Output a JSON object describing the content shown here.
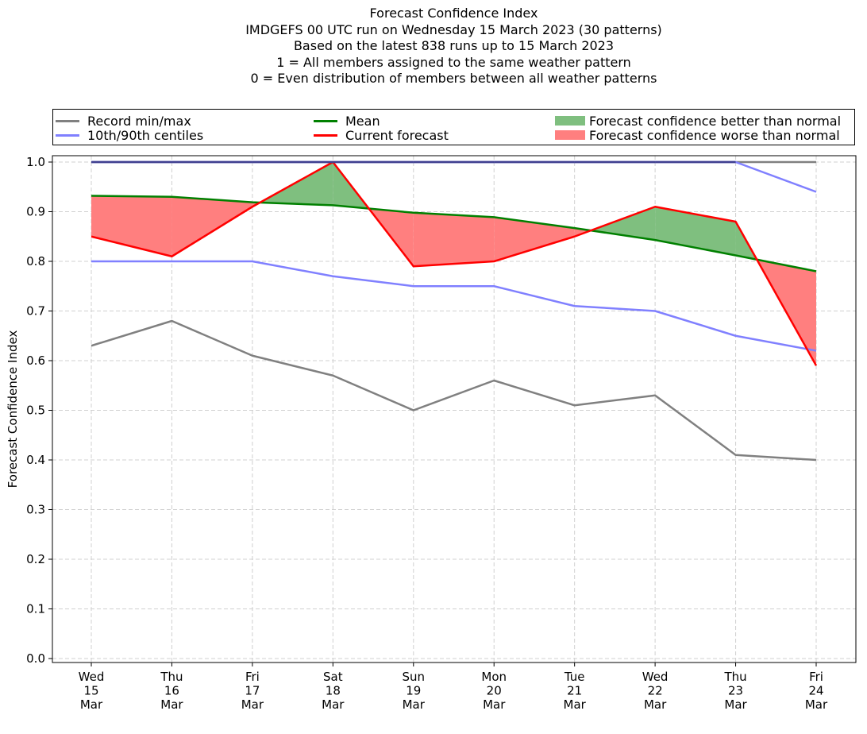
{
  "chart_data": {
    "type": "line",
    "title": "Forecast Confidence Index",
    "subtitle_lines": [
      "IMDGEFS 00 UTC run on Wednesday 15 March 2023 (30 patterns)",
      "Based on the latest 838 runs up to 15 March 2023",
      "1 = All members assigned to the same weather pattern",
      "0 = Even distribution of members between all weather patterns"
    ],
    "xlabel": "",
    "ylabel": "Forecast Confidence Index",
    "ylim": [
      0.0,
      1.0
    ],
    "yticks": [
      "0.0",
      "0.1",
      "0.2",
      "0.3",
      "0.4",
      "0.5",
      "0.6",
      "0.7",
      "0.8",
      "0.9",
      "1.0"
    ],
    "grid": true,
    "legend_placement": "top",
    "categories": [
      {
        "day": "Wed",
        "date": "15",
        "month": "Mar"
      },
      {
        "day": "Thu",
        "date": "16",
        "month": "Mar"
      },
      {
        "day": "Fri",
        "date": "17",
        "month": "Mar"
      },
      {
        "day": "Sat",
        "date": "18",
        "month": "Mar"
      },
      {
        "day": "Sun",
        "date": "19",
        "month": "Mar"
      },
      {
        "day": "Mon",
        "date": "20",
        "month": "Mar"
      },
      {
        "day": "Tue",
        "date": "21",
        "month": "Mar"
      },
      {
        "day": "Wed",
        "date": "22",
        "month": "Mar"
      },
      {
        "day": "Thu",
        "date": "23",
        "month": "Mar"
      },
      {
        "day": "Fri",
        "date": "24",
        "month": "Mar"
      }
    ],
    "series": [
      {
        "key": "record_min",
        "color": "#808080",
        "values": [
          0.63,
          0.68,
          0.61,
          0.57,
          0.5,
          0.56,
          0.51,
          0.53,
          0.41,
          0.4
        ]
      },
      {
        "key": "record_max",
        "color": "#808080",
        "values": [
          1.0,
          1.0,
          1.0,
          1.0,
          1.0,
          1.0,
          1.0,
          1.0,
          1.0,
          1.0
        ]
      },
      {
        "key": "p10",
        "color": "#8080ff",
        "values": [
          0.8,
          0.8,
          0.8,
          0.77,
          0.75,
          0.75,
          0.71,
          0.7,
          0.65,
          0.62
        ]
      },
      {
        "key": "p90",
        "color": "#8080ff",
        "values": [
          1.0,
          1.0,
          1.0,
          1.0,
          1.0,
          1.0,
          1.0,
          1.0,
          1.0,
          0.94
        ]
      },
      {
        "key": "mean",
        "color": "#008000",
        "values": [
          0.932,
          0.93,
          0.919,
          0.913,
          0.898,
          0.889,
          0.867,
          0.843,
          0.812,
          0.78
        ]
      },
      {
        "key": "current",
        "color": "#ff0000",
        "values": [
          0.85,
          0.81,
          0.91,
          1.0,
          0.79,
          0.8,
          0.85,
          0.91,
          0.88,
          0.59
        ]
      }
    ],
    "fill_better_color": "#7fbf7f",
    "fill_worse_color": "#ff7f7f"
  },
  "legend": {
    "record": {
      "label": "Record min/max",
      "color": "#808080"
    },
    "centiles": {
      "label": "10th/90th centiles",
      "color": "#8080ff"
    },
    "mean": {
      "label": "Mean",
      "color": "#008000"
    },
    "current": {
      "label": "Current forecast",
      "color": "#ff0000"
    },
    "better": {
      "label": "Forecast confidence better than normal",
      "color": "#7fbf7f"
    },
    "worse": {
      "label": "Forecast confidence worse than normal",
      "color": "#ff7f7f"
    }
  }
}
